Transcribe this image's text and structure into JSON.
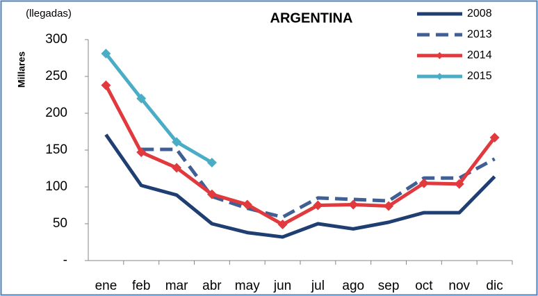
{
  "chart_data": {
    "type": "line",
    "title": "ARGENTINA",
    "annotation": "(llegadas)",
    "ylabel": "Millares",
    "categories": [
      "ene",
      "feb",
      "mar",
      "abr",
      "may",
      "jun",
      "jul",
      "ago",
      "sep",
      "oct",
      "nov",
      "dic"
    ],
    "series": [
      {
        "name": "2008",
        "color": "#1f3f72",
        "dash": false,
        "marker": "none",
        "values": [
          171,
          102,
          89,
          50,
          38,
          32,
          50,
          43,
          52,
          65,
          65,
          114
        ]
      },
      {
        "name": "2013",
        "color": "#3f5f95",
        "dash": true,
        "marker": "none",
        "values": [
          null,
          151,
          151,
          87,
          71,
          59,
          85,
          83,
          81,
          112,
          112,
          138
        ]
      },
      {
        "name": "2014",
        "color": "#e0393e",
        "dash": false,
        "marker": "diamond",
        "values": [
          238,
          147,
          126,
          90,
          76,
          49,
          75,
          76,
          74,
          105,
          104,
          167
        ]
      },
      {
        "name": "2015",
        "color": "#4bacc6",
        "dash": false,
        "marker": "diamond",
        "values": [
          281,
          220,
          161,
          133,
          null,
          null,
          null,
          null,
          null,
          null,
          null,
          null
        ]
      }
    ],
    "ylim": [
      0,
      300
    ],
    "yticks": [
      {
        "value": 0,
        "label": "-"
      },
      50,
      100,
      150,
      200,
      250,
      300
    ],
    "grid": false,
    "legend": "upper right"
  }
}
